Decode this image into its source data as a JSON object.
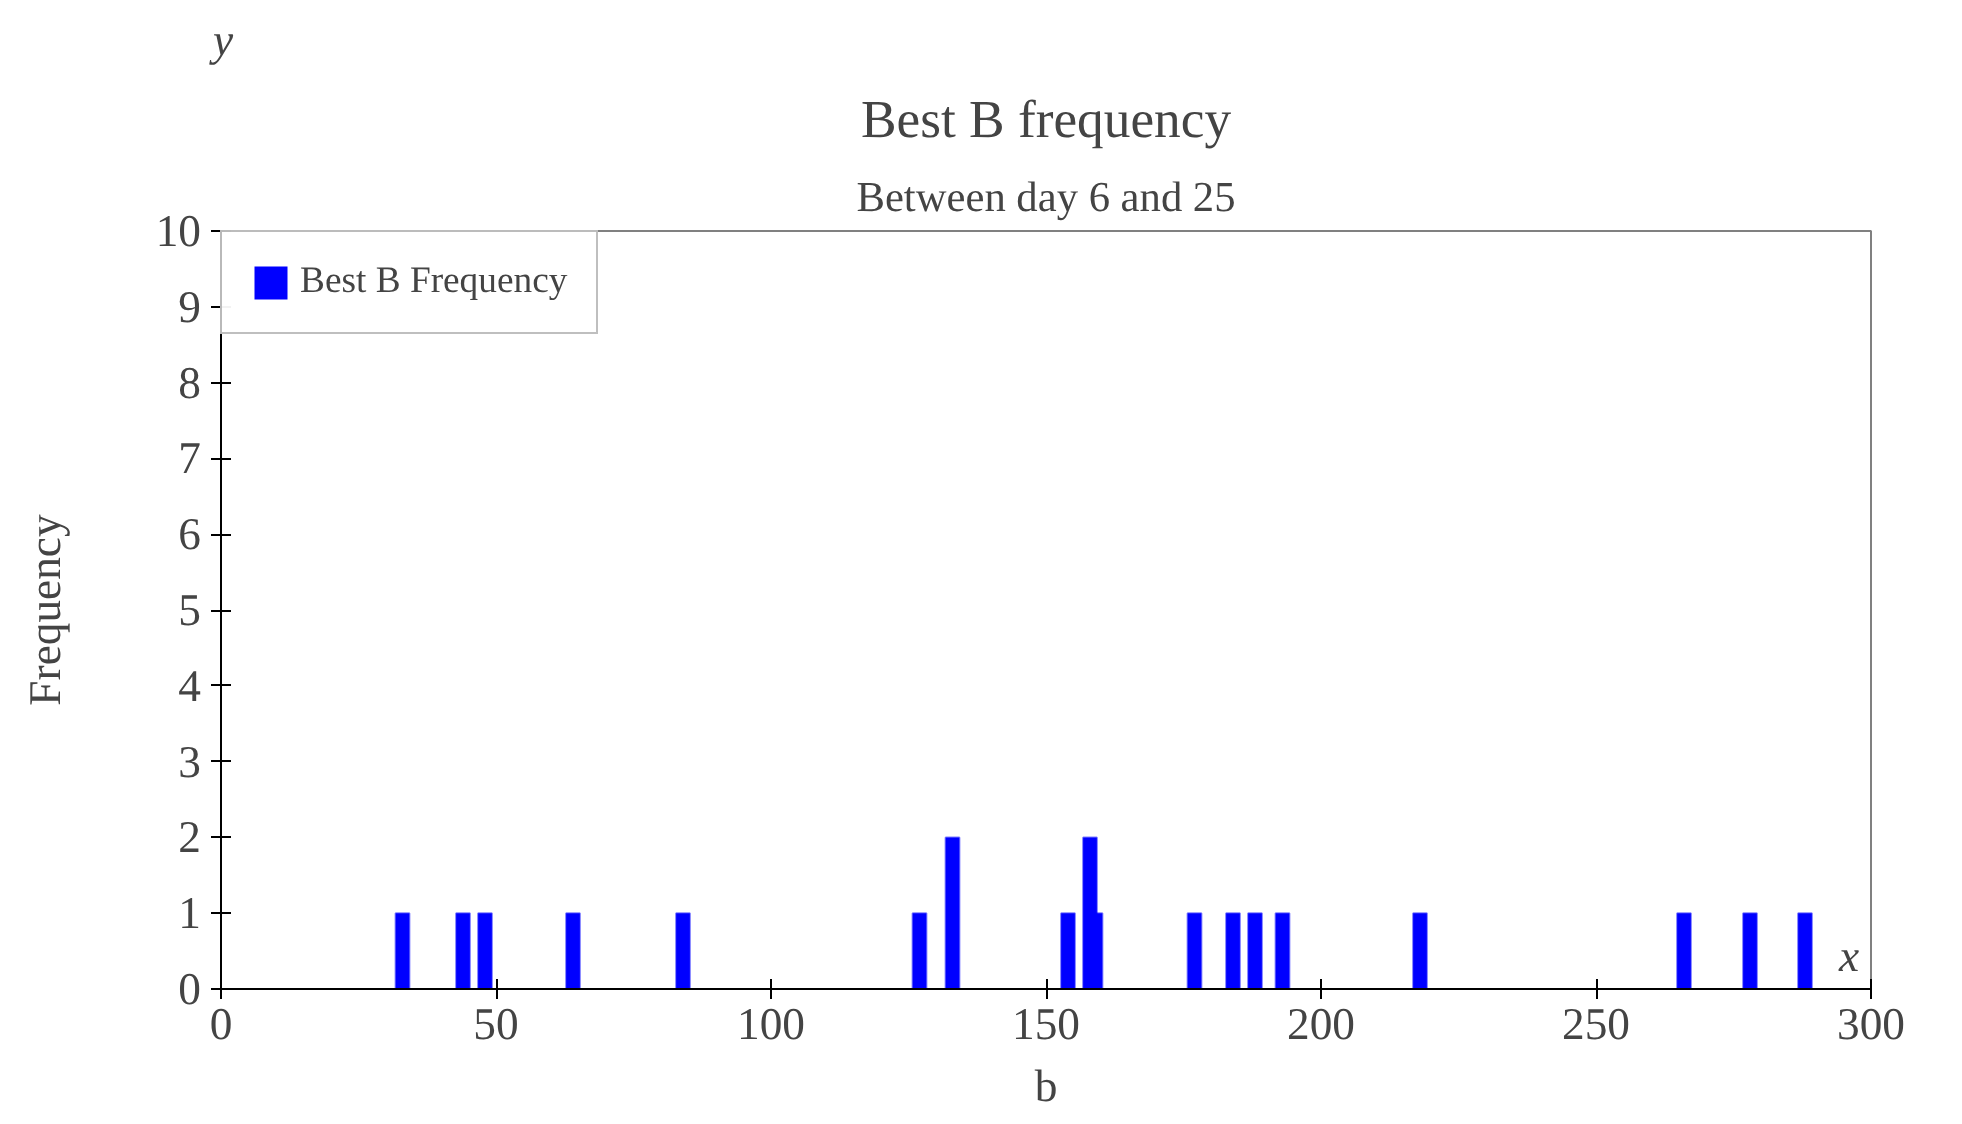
{
  "chart_data": {
    "type": "bar",
    "title": "Best B frequency",
    "subtitle": "Between day 6 and 25",
    "xlabel": "b",
    "ylabel": "Frequency",
    "annotations": [
      "x",
      "y"
    ],
    "x": [
      1,
      2,
      3,
      4,
      5,
      6,
      7,
      8,
      9,
      10,
      11,
      12,
      13,
      14,
      15,
      16,
      17,
      18,
      19,
      20,
      21,
      22,
      23,
      24,
      25,
      26,
      27,
      28,
      29,
      30,
      31,
      32,
      33,
      34,
      35,
      36,
      37,
      38,
      39,
      40,
      41,
      42,
      43,
      44,
      45,
      46,
      47,
      48,
      49,
      50,
      51,
      52,
      53,
      54,
      55,
      56,
      57,
      58,
      59,
      60,
      61,
      62,
      63,
      64,
      65,
      66,
      67,
      68,
      69,
      70,
      71,
      72,
      73,
      74,
      75,
      76,
      77,
      78,
      79,
      80,
      81,
      82,
      83,
      84,
      85,
      86,
      87,
      88,
      89,
      90,
      91,
      92,
      93,
      94,
      95,
      96,
      97,
      98,
      99,
      100,
      101,
      102,
      103,
      104,
      105,
      106,
      107,
      108,
      109,
      110,
      111,
      112,
      113,
      114,
      115,
      116,
      117,
      118,
      119,
      120,
      121,
      122,
      123,
      124,
      125,
      126,
      127,
      128,
      129,
      130,
      131,
      132,
      133,
      134,
      135,
      136,
      137,
      138,
      139,
      140,
      141,
      142,
      143,
      144,
      145,
      146,
      147,
      148,
      149,
      150,
      151,
      152,
      153,
      154,
      155,
      156,
      157,
      158,
      159,
      160,
      161,
      162,
      163,
      164,
      165,
      166,
      167,
      168,
      169,
      170,
      171,
      172,
      173,
      174,
      175,
      176,
      177,
      178,
      179,
      180,
      181,
      182,
      183,
      184,
      185,
      186,
      187,
      188,
      189,
      190,
      191,
      192,
      193,
      194,
      195,
      196,
      197,
      198,
      199,
      200,
      201,
      202,
      203,
      204,
      205,
      206,
      207,
      208,
      209,
      210,
      211,
      212,
      213,
      214,
      215,
      216,
      217,
      218,
      219,
      220,
      221,
      222,
      223,
      224,
      225,
      226,
      227,
      228,
      229,
      230,
      231,
      232,
      233,
      234,
      235,
      236,
      237,
      238,
      239,
      240,
      241,
      242,
      243,
      244,
      245,
      246,
      247,
      248,
      249,
      250,
      251,
      252,
      253,
      254,
      255,
      256,
      257,
      258,
      259,
      260,
      261,
      262,
      263,
      264,
      265,
      266,
      267,
      268,
      269,
      270,
      271,
      272,
      273,
      274,
      275,
      276,
      277,
      278,
      279,
      280,
      281,
      282,
      283,
      284,
      285,
      286,
      287,
      288,
      289
    ],
    "series": [
      {
        "name": "Best B Frequency",
        "color": "#0000ff",
        "values": [
          0,
          0,
          0,
          0,
          0,
          0,
          0,
          0,
          0,
          0,
          0,
          0,
          0,
          0,
          0,
          0,
          0,
          0,
          0,
          0,
          0,
          0,
          0,
          0,
          0,
          0,
          0,
          0,
          0,
          0,
          0,
          0,
          1,
          0,
          0,
          0,
          0,
          0,
          0,
          0,
          0,
          0,
          0,
          1,
          0,
          0,
          0,
          1,
          0,
          0,
          0,
          0,
          0,
          0,
          0,
          0,
          0,
          0,
          0,
          0,
          0,
          0,
          0,
          1,
          0,
          0,
          0,
          0,
          0,
          0,
          0,
          0,
          0,
          0,
          0,
          0,
          0,
          0,
          0,
          0,
          0,
          0,
          0,
          1,
          0,
          0,
          0,
          0,
          0,
          0,
          0,
          0,
          0,
          0,
          0,
          0,
          0,
          0,
          0,
          0,
          0,
          0,
          0,
          0,
          0,
          0,
          0,
          0,
          0,
          0,
          0,
          0,
          0,
          0,
          0,
          0,
          0,
          0,
          0,
          0,
          0,
          0,
          0,
          0,
          0,
          0,
          1,
          0,
          0,
          0,
          0,
          0,
          2,
          0,
          0,
          0,
          0,
          0,
          0,
          0,
          0,
          0,
          0,
          0,
          0,
          0,
          0,
          0,
          0,
          0,
          0,
          0,
          0,
          1,
          0,
          0,
          0,
          2,
          1,
          0,
          0,
          0,
          0,
          0,
          0,
          0,
          0,
          0,
          0,
          0,
          0,
          0,
          0,
          0,
          0,
          0,
          1,
          0,
          0,
          0,
          0,
          0,
          0,
          1,
          0,
          0,
          0,
          1,
          0,
          0,
          0,
          0,
          1,
          0,
          0,
          0,
          0,
          0,
          0,
          0,
          0,
          0,
          0,
          0,
          0,
          0,
          0,
          0,
          0,
          0,
          0,
          0,
          0,
          0,
          0,
          0,
          0,
          1,
          0,
          0,
          0,
          0,
          0,
          0,
          0,
          0,
          0,
          0,
          0,
          0,
          0,
          0,
          0,
          0,
          0,
          0,
          0,
          0,
          0,
          0,
          0,
          0,
          0,
          0,
          0,
          0,
          0,
          0,
          0,
          0,
          0,
          0,
          0,
          0,
          0,
          0,
          0,
          0,
          0,
          0,
          0,
          0,
          0,
          0,
          0,
          1,
          0,
          0,
          0,
          0,
          0,
          0,
          0,
          0,
          0,
          0,
          0,
          1,
          0,
          0,
          0,
          0,
          0,
          0,
          0,
          0,
          0,
          1,
          0
        ]
      }
    ],
    "xlim": [
      0,
      300
    ],
    "ylim": [
      0,
      10
    ],
    "xticks": [
      0,
      50,
      100,
      150,
      200,
      250,
      300
    ],
    "yticks": [
      0,
      1,
      2,
      3,
      4,
      5,
      6,
      7,
      8,
      9,
      10
    ],
    "legend": "top left",
    "grid": false
  }
}
